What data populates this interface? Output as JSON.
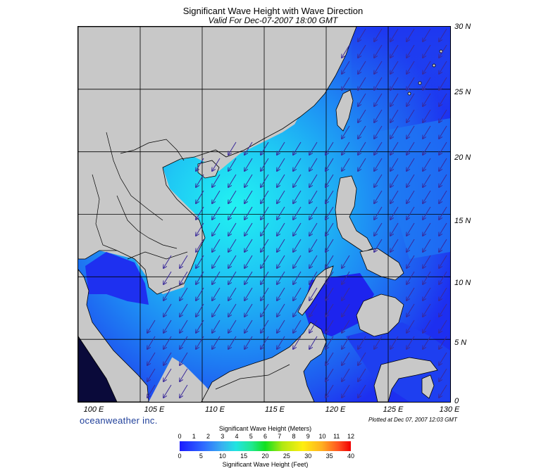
{
  "map": {
    "title": "Significant Wave Height with Wave Direction",
    "subtitle": "Valid For Dec-07-2007 18:00 GMT",
    "lon_labels": [
      "100 E",
      "105 E",
      "110 E",
      "115 E",
      "120 E",
      "125 E",
      "130 E"
    ],
    "lat_labels": [
      "30 N",
      "25 N",
      "20 N",
      "15 N",
      "10 N",
      "5 N",
      "0"
    ],
    "lon_range": [
      100,
      130
    ],
    "lat_range": [
      0,
      30
    ],
    "grid_interval_deg": 5,
    "land_color": "#c8c8c8",
    "arrow_color": "#3a2a9a"
  },
  "branding": {
    "name": "oceanweather inc.",
    "plotted": "Plotted at Dec 07, 2007 12:03 GMT"
  },
  "legend": {
    "meters_title": "Significant Wave Height (Meters)",
    "feet_title": "Significant Wave Height (Feet)",
    "meters_ticks": [
      "0",
      "1",
      "2",
      "3",
      "4",
      "5",
      "6",
      "7",
      "8",
      "9",
      "10",
      "11",
      "12"
    ],
    "feet_ticks": [
      "0",
      "5",
      "10",
      "15",
      "20",
      "25",
      "30",
      "35",
      "40"
    ],
    "colors": [
      "#1a1aff",
      "#2f6bff",
      "#38b2f0",
      "#20e4e0",
      "#20e890",
      "#10e020",
      "#b0e810",
      "#ffee10",
      "#ffb020",
      "#ff5020",
      "#f00000"
    ]
  }
}
